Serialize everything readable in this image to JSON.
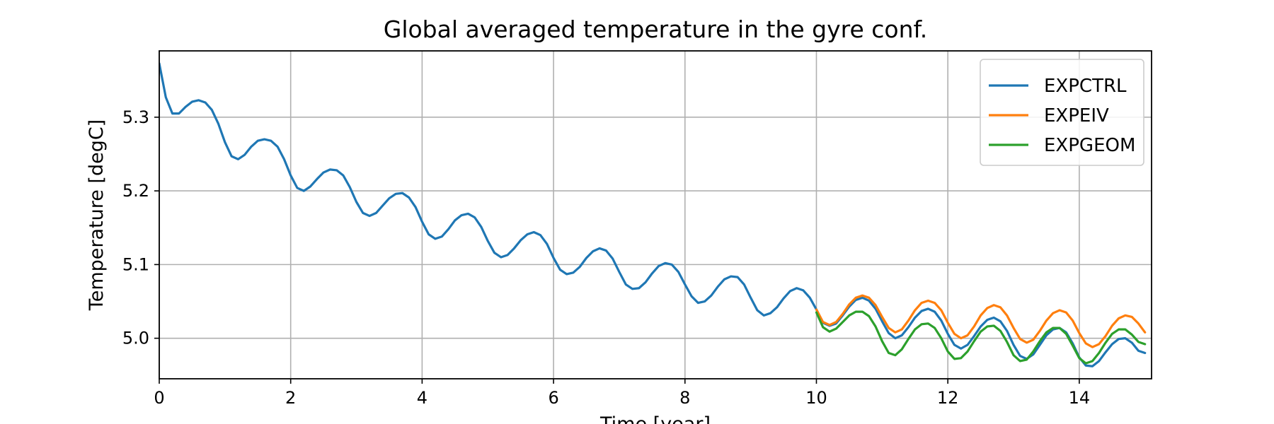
{
  "chart_data": {
    "type": "line",
    "title": "Global averaged temperature in the gyre conf.",
    "xlabel": "Time [year]",
    "ylabel": "Temperature [degC]",
    "xlim": [
      0,
      15.1
    ],
    "ylim": [
      4.945,
      5.39
    ],
    "xticks": [
      0,
      2,
      4,
      6,
      8,
      10,
      12,
      14
    ],
    "yticks": [
      5.0,
      5.1,
      5.2,
      5.3
    ],
    "ytick_labels": [
      "5.0",
      "5.1",
      "5.2",
      "5.3"
    ],
    "grid": true,
    "legend_position": "top-right",
    "series": [
      {
        "name": "EXPCTRL",
        "color": "#1f77b4",
        "x": [
          0.0,
          0.1,
          0.2,
          0.3,
          0.4,
          0.5,
          0.6,
          0.7,
          0.8,
          0.9,
          1.0,
          1.1,
          1.2,
          1.3,
          1.4,
          1.5,
          1.6,
          1.7,
          1.8,
          1.9,
          2.0,
          2.1,
          2.2,
          2.3,
          2.4,
          2.5,
          2.6,
          2.7,
          2.8,
          2.9,
          3.0,
          3.1,
          3.2,
          3.3,
          3.4,
          3.5,
          3.6,
          3.7,
          3.8,
          3.9,
          4.0,
          4.1,
          4.2,
          4.3,
          4.4,
          4.5,
          4.6,
          4.7,
          4.8,
          4.9,
          5.0,
          5.1,
          5.2,
          5.3,
          5.4,
          5.5,
          5.6,
          5.7,
          5.8,
          5.9,
          6.0,
          6.1,
          6.2,
          6.3,
          6.4,
          6.5,
          6.6,
          6.7,
          6.8,
          6.9,
          7.0,
          7.1,
          7.2,
          7.3,
          7.4,
          7.5,
          7.6,
          7.7,
          7.8,
          7.9,
          8.0,
          8.1,
          8.2,
          8.3,
          8.4,
          8.5,
          8.6,
          8.7,
          8.8,
          8.9,
          9.0,
          9.1,
          9.2,
          9.3,
          9.4,
          9.5,
          9.6,
          9.7,
          9.8,
          9.9,
          10.0,
          10.1,
          10.2,
          10.3,
          10.4,
          10.5,
          10.6,
          10.7,
          10.8,
          10.9,
          11.0,
          11.1,
          11.2,
          11.3,
          11.4,
          11.5,
          11.6,
          11.7,
          11.8,
          11.9,
          12.0,
          12.1,
          12.2,
          12.3,
          12.4,
          12.5,
          12.6,
          12.7,
          12.8,
          12.9,
          13.0,
          13.1,
          13.2,
          13.3,
          13.4,
          13.5,
          13.6,
          13.7,
          13.8,
          13.9,
          14.0,
          14.1,
          14.2,
          14.3,
          14.4,
          14.5,
          14.6,
          14.7,
          14.8,
          14.9,
          15.0
        ],
        "values": [
          5.373,
          5.327,
          5.305,
          5.305,
          5.314,
          5.321,
          5.323,
          5.32,
          5.31,
          5.291,
          5.266,
          5.247,
          5.243,
          5.249,
          5.26,
          5.268,
          5.27,
          5.268,
          5.26,
          5.243,
          5.221,
          5.204,
          5.2,
          5.206,
          5.216,
          5.225,
          5.229,
          5.228,
          5.221,
          5.205,
          5.185,
          5.17,
          5.166,
          5.17,
          5.18,
          5.19,
          5.196,
          5.197,
          5.191,
          5.178,
          5.158,
          5.141,
          5.135,
          5.138,
          5.148,
          5.16,
          5.167,
          5.169,
          5.164,
          5.151,
          5.132,
          5.116,
          5.11,
          5.113,
          5.122,
          5.133,
          5.141,
          5.144,
          5.14,
          5.128,
          5.109,
          5.093,
          5.087,
          5.089,
          5.097,
          5.109,
          5.118,
          5.122,
          5.119,
          5.108,
          5.09,
          5.073,
          5.067,
          5.068,
          5.076,
          5.088,
          5.098,
          5.102,
          5.1,
          5.09,
          5.073,
          5.057,
          5.048,
          5.05,
          5.058,
          5.07,
          5.08,
          5.084,
          5.083,
          5.073,
          5.055,
          5.038,
          5.031,
          5.034,
          5.042,
          5.054,
          5.064,
          5.068,
          5.065,
          5.055,
          5.039,
          5.021,
          5.017,
          5.02,
          5.031,
          5.043,
          5.052,
          5.055,
          5.051,
          5.04,
          5.023,
          5.007,
          5.0,
          5.004,
          5.015,
          5.028,
          5.037,
          5.04,
          5.036,
          5.024,
          5.006,
          4.991,
          4.986,
          4.991,
          5.003,
          5.016,
          5.025,
          5.028,
          5.023,
          5.01,
          4.991,
          4.976,
          4.972,
          4.978,
          4.991,
          5.004,
          5.012,
          5.014,
          5.008,
          4.993,
          4.974,
          4.963,
          4.962,
          4.969,
          4.981,
          4.992,
          4.999,
          5.0,
          4.994,
          4.983,
          4.98
        ]
      },
      {
        "name": "EXPEIV",
        "color": "#ff7f0e",
        "x": [
          10.0,
          10.1,
          10.2,
          10.3,
          10.4,
          10.5,
          10.6,
          10.7,
          10.8,
          10.9,
          11.0,
          11.1,
          11.2,
          11.3,
          11.4,
          11.5,
          11.6,
          11.7,
          11.8,
          11.9,
          12.0,
          12.1,
          12.2,
          12.3,
          12.4,
          12.5,
          12.6,
          12.7,
          12.8,
          12.9,
          13.0,
          13.1,
          13.2,
          13.3,
          13.4,
          13.5,
          13.6,
          13.7,
          13.8,
          13.9,
          14.0,
          14.1,
          14.2,
          14.3,
          14.4,
          14.5,
          14.6,
          14.7,
          14.8,
          14.9,
          15.0
        ],
        "values": [
          5.039,
          5.022,
          5.018,
          5.022,
          5.033,
          5.046,
          5.055,
          5.058,
          5.055,
          5.045,
          5.029,
          5.014,
          5.008,
          5.012,
          5.024,
          5.038,
          5.048,
          5.051,
          5.048,
          5.038,
          5.021,
          5.006,
          5.0,
          5.004,
          5.016,
          5.031,
          5.041,
          5.045,
          5.042,
          5.031,
          5.014,
          4.999,
          4.994,
          4.998,
          5.01,
          5.024,
          5.034,
          5.038,
          5.035,
          5.024,
          5.007,
          4.993,
          4.988,
          4.992,
          5.003,
          5.017,
          5.027,
          5.031,
          5.029,
          5.02,
          5.008
        ]
      },
      {
        "name": "EXPGEOM",
        "color": "#2ca02c",
        "x": [
          10.0,
          10.1,
          10.2,
          10.3,
          10.4,
          10.5,
          10.6,
          10.7,
          10.8,
          10.9,
          11.0,
          11.1,
          11.2,
          11.3,
          11.4,
          11.5,
          11.6,
          11.7,
          11.8,
          11.9,
          12.0,
          12.1,
          12.2,
          12.3,
          12.4,
          12.5,
          12.6,
          12.7,
          12.8,
          12.9,
          13.0,
          13.1,
          13.2,
          13.3,
          13.4,
          13.5,
          13.6,
          13.7,
          13.8,
          13.9,
          14.0,
          14.1,
          14.2,
          14.3,
          14.4,
          14.5,
          14.6,
          14.7,
          14.8,
          14.9,
          15.0
        ],
        "values": [
          5.035,
          5.015,
          5.009,
          5.013,
          5.022,
          5.031,
          5.036,
          5.036,
          5.03,
          5.016,
          4.996,
          4.98,
          4.977,
          4.985,
          4.999,
          5.012,
          5.019,
          5.02,
          5.014,
          5.0,
          4.982,
          4.972,
          4.973,
          4.982,
          4.996,
          5.009,
          5.016,
          5.017,
          5.01,
          4.995,
          4.977,
          4.969,
          4.971,
          4.982,
          4.996,
          5.008,
          5.014,
          5.014,
          5.006,
          4.99,
          4.973,
          4.966,
          4.969,
          4.98,
          4.994,
          5.006,
          5.012,
          5.012,
          5.005,
          4.995,
          4.992
        ]
      }
    ]
  }
}
